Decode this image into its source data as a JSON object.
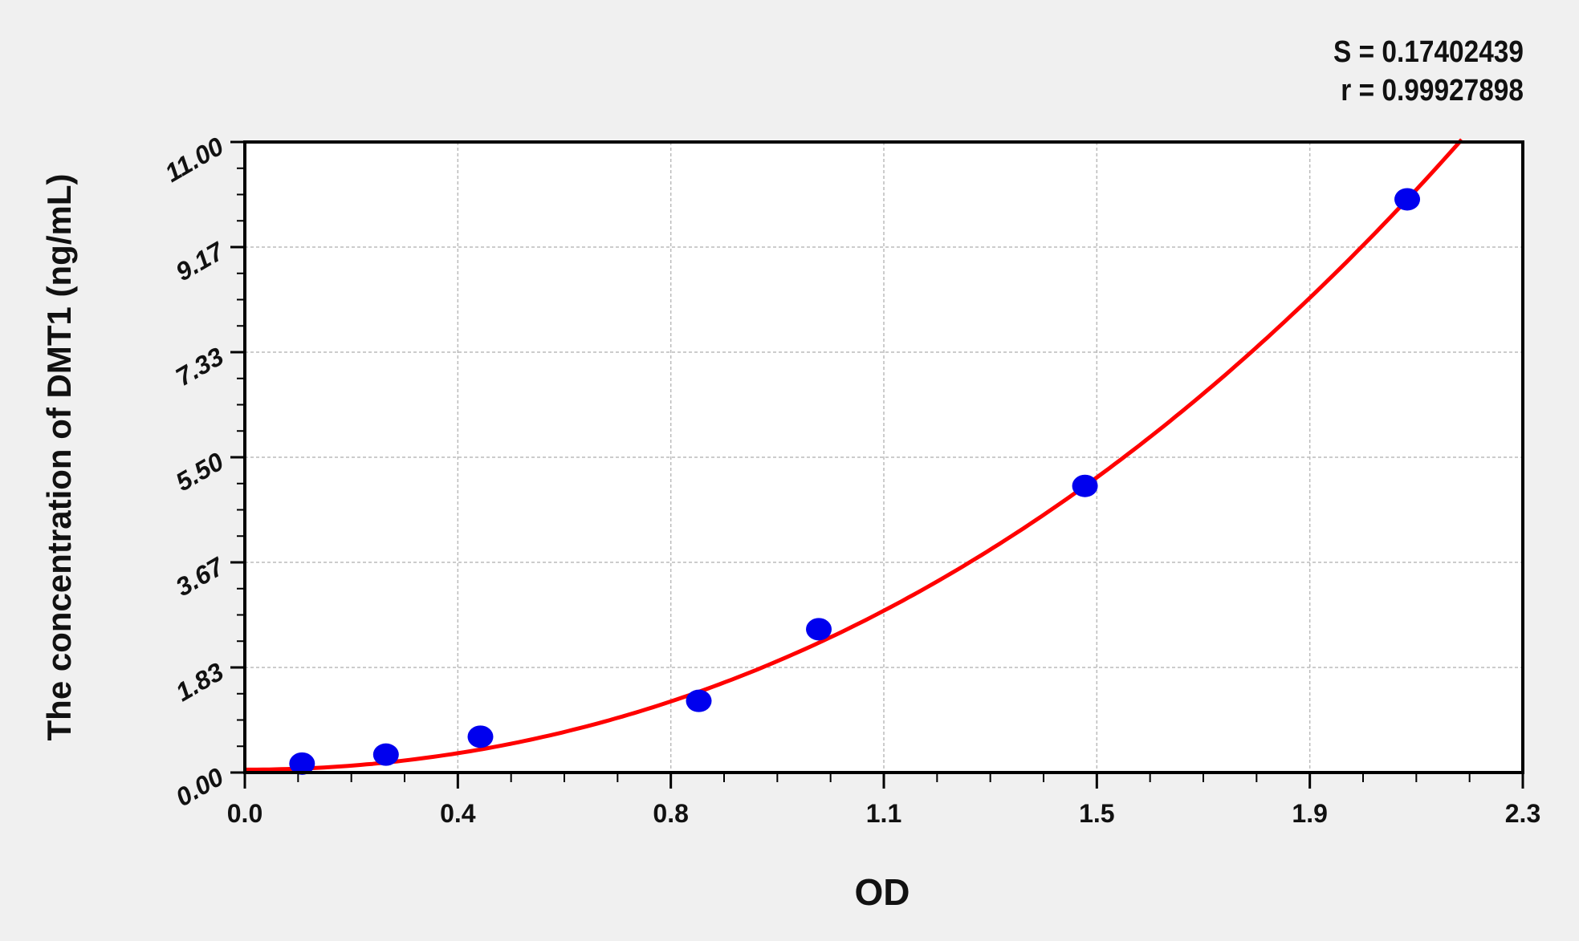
{
  "chart_data": {
    "type": "scatter",
    "title": "",
    "xlabel": "OD",
    "ylabel": "The concentration of DMT1 (ng/mL)",
    "xlim": [
      0,
      2.3
    ],
    "ylim": [
      0,
      11
    ],
    "x_tick_labels": [
      "0.0",
      "0.4",
      "0.8",
      "1.1",
      "1.5",
      "1.9",
      "2.3"
    ],
    "y_tick_labels": [
      "0.00",
      "1.83",
      "3.67",
      "5.50",
      "7.33",
      "9.17",
      "11.00"
    ],
    "grid": true,
    "stats": [
      "S = 0.17402439",
      "r = 0.99927898"
    ],
    "points": {
      "x": [
        0.103,
        0.254,
        0.424,
        0.817,
        1.033,
        1.512,
        2.092
      ],
      "y": [
        0.156,
        0.313,
        0.625,
        1.25,
        2.5,
        5.0,
        10.0
      ]
    },
    "fit_curve": {
      "x_range": [
        0,
        2.19
      ]
    },
    "colors": {
      "points": "#0000ee",
      "curve": "#ff0000",
      "grid": "#bbbbbb",
      "background": "#f0f0f0",
      "plot_bg": "#ffffff"
    }
  }
}
